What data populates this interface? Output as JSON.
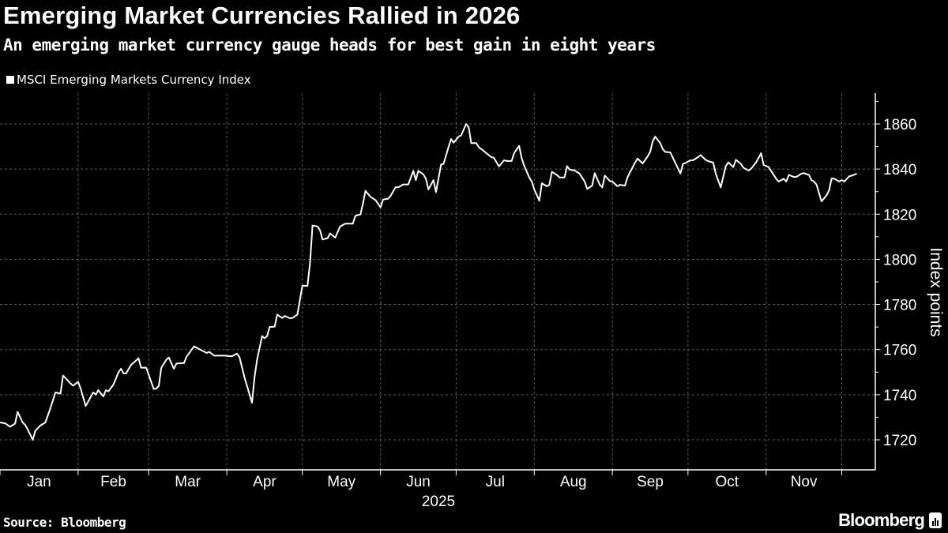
{
  "title": "Emerging Market Currencies Rallied in 2026",
  "subtitle": "An emerging market currency gauge heads for best gain in eight years",
  "source": "Source: Bloomberg",
  "logo_text": "Bloomberg",
  "colors": {
    "background": "#000000",
    "line": "#ffffff",
    "grid": "#5a5a5a"
  },
  "chart_data": {
    "type": "line",
    "title": "Emerging Market Currencies Rallied in 2026",
    "ylabel": "Index points",
    "xlabel": "2025",
    "ylim": [
      1710,
      1868
    ],
    "y_ticks": [
      1720,
      1740,
      1760,
      1780,
      1800,
      1820,
      1840,
      1860
    ],
    "x_ticks": [
      "Jan",
      "Feb",
      "Mar",
      "Apr",
      "May",
      "Jun",
      "Jul",
      "Aug",
      "Sep",
      "Oct",
      "Nov"
    ],
    "year": "2025",
    "grid": true,
    "y_axis_side": "right",
    "legend": "top-left",
    "series": [
      {
        "name": "MSCI Emerging Markets Currency Index",
        "points": [
          [
            "2025-01-01",
            1727.7
          ],
          [
            "2025-01-03",
            1727.3
          ],
          [
            "2025-01-05",
            1725.8
          ],
          [
            "2025-01-07",
            1727.2
          ],
          [
            "2025-01-08",
            1732.4
          ],
          [
            "2025-01-10",
            1727.7
          ],
          [
            "2025-01-11",
            1726.6
          ],
          [
            "2025-01-12",
            1724.5
          ],
          [
            "2025-01-14",
            1720.0
          ],
          [
            "2025-01-15",
            1724.0
          ],
          [
            "2025-01-17",
            1726.3
          ],
          [
            "2025-01-19",
            1727.7
          ],
          [
            "2025-01-21",
            1734.0
          ],
          [
            "2025-01-23",
            1741.0
          ],
          [
            "2025-01-25",
            1740.5
          ],
          [
            "2025-01-26",
            1748.5
          ],
          [
            "2025-01-29",
            1745.0
          ],
          [
            "2025-01-30",
            1744.0
          ],
          [
            "2025-02-01",
            1745.7
          ],
          [
            "2025-02-02",
            1742.7
          ],
          [
            "2025-02-04",
            1735.0
          ],
          [
            "2025-02-07",
            1741.0
          ],
          [
            "2025-02-08",
            1740.0
          ],
          [
            "2025-02-09",
            1742.0
          ],
          [
            "2025-02-11",
            1739.2
          ],
          [
            "2025-02-12",
            1742.0
          ],
          [
            "2025-02-13",
            1741.5
          ],
          [
            "2025-02-15",
            1744.5
          ],
          [
            "2025-02-17",
            1749.8
          ],
          [
            "2025-02-18",
            1751.5
          ],
          [
            "2025-02-19",
            1749.5
          ],
          [
            "2025-02-20",
            1749.4
          ],
          [
            "2025-02-22",
            1753.2
          ],
          [
            "2025-02-25",
            1756.1
          ],
          [
            "2025-02-26",
            1752.0
          ],
          [
            "2025-02-28",
            1752.0
          ],
          [
            "2025-03-03",
            1742.5
          ],
          [
            "2025-03-04",
            1742.7
          ],
          [
            "2025-03-05",
            1743.9
          ],
          [
            "2025-03-06",
            1752.0
          ],
          [
            "2025-03-08",
            1755.5
          ],
          [
            "2025-03-09",
            1756.5
          ],
          [
            "2025-03-11",
            1751.5
          ],
          [
            "2025-03-12",
            1753.8
          ],
          [
            "2025-03-15",
            1754.0
          ],
          [
            "2025-03-16",
            1756.8
          ],
          [
            "2025-03-19",
            1761.4
          ],
          [
            "2025-03-24",
            1758.5
          ],
          [
            "2025-03-25",
            1759.0
          ],
          [
            "2025-03-27",
            1757.3
          ],
          [
            "2025-03-31",
            1757.3
          ],
          [
            "2025-04-03",
            1757.0
          ],
          [
            "2025-04-05",
            1758.2
          ],
          [
            "2025-04-06",
            1756.7
          ],
          [
            "2025-04-08",
            1747.8
          ],
          [
            "2025-04-11",
            1736.4
          ],
          [
            "2025-04-12",
            1747.8
          ],
          [
            "2025-04-13",
            1755.5
          ],
          [
            "2025-04-15",
            1766.0
          ],
          [
            "2025-04-16",
            1765.0
          ],
          [
            "2025-04-17",
            1766.0
          ],
          [
            "2025-04-18",
            1770.0
          ],
          [
            "2025-04-20",
            1770.2
          ],
          [
            "2025-04-21",
            1775.5
          ],
          [
            "2025-04-23",
            1774.0
          ],
          [
            "2025-04-24",
            1774.9
          ],
          [
            "2025-04-26",
            1773.9
          ],
          [
            "2025-04-27",
            1774.0
          ],
          [
            "2025-04-29",
            1775.5
          ],
          [
            "2025-05-01",
            1788.3
          ],
          [
            "2025-05-03",
            1788.2
          ],
          [
            "2025-05-04",
            1798.2
          ],
          [
            "2025-05-05",
            1815.0
          ],
          [
            "2025-05-07",
            1814.6
          ],
          [
            "2025-05-08",
            1812.9
          ],
          [
            "2025-05-09",
            1808.8
          ],
          [
            "2025-05-11",
            1809.4
          ],
          [
            "2025-05-12",
            1811.5
          ],
          [
            "2025-05-14",
            1809.6
          ],
          [
            "2025-05-16",
            1814.6
          ],
          [
            "2025-05-18",
            1815.8
          ],
          [
            "2025-05-21",
            1815.8
          ],
          [
            "2025-05-22",
            1819.3
          ],
          [
            "2025-05-24",
            1819.9
          ],
          [
            "2025-05-25",
            1824.6
          ],
          [
            "2025-05-26",
            1830.4
          ],
          [
            "2025-05-28",
            1827.7
          ],
          [
            "2025-05-30",
            1826.3
          ],
          [
            "2025-06-01",
            1823.0
          ],
          [
            "2025-06-02",
            1826.5
          ],
          [
            "2025-06-04",
            1826.9
          ],
          [
            "2025-06-05",
            1828.1
          ],
          [
            "2025-06-07",
            1832.0
          ],
          [
            "2025-06-08",
            1831.9
          ],
          [
            "2025-06-10",
            1833.2
          ],
          [
            "2025-06-12",
            1833.2
          ],
          [
            "2025-06-14",
            1839.2
          ],
          [
            "2025-06-15",
            1835.1
          ],
          [
            "2025-06-16",
            1839.2
          ],
          [
            "2025-06-18",
            1837.7
          ],
          [
            "2025-06-19",
            1835.7
          ],
          [
            "2025-06-20",
            1831.0
          ],
          [
            "2025-06-22",
            1835.1
          ],
          [
            "2025-06-23",
            1829.8
          ],
          [
            "2025-06-25",
            1842.0
          ],
          [
            "2025-06-26",
            1842.3
          ],
          [
            "2025-06-28",
            1849.8
          ],
          [
            "2025-06-29",
            1853.3
          ],
          [
            "2025-06-30",
            1851.7
          ],
          [
            "2025-07-02",
            1854.4
          ],
          [
            "2025-07-03",
            1855.0
          ],
          [
            "2025-07-05",
            1860.0
          ],
          [
            "2025-07-06",
            1858.5
          ],
          [
            "2025-07-07",
            1851.5
          ],
          [
            "2025-07-09",
            1851.5
          ],
          [
            "2025-07-10",
            1849.7
          ],
          [
            "2025-07-12",
            1848.0
          ],
          [
            "2025-07-13",
            1847.0
          ],
          [
            "2025-07-15",
            1845.3
          ],
          [
            "2025-07-16",
            1845.0
          ],
          [
            "2025-07-18",
            1841.2
          ],
          [
            "2025-07-20",
            1843.9
          ],
          [
            "2025-07-21",
            1843.6
          ],
          [
            "2025-07-23",
            1843.6
          ],
          [
            "2025-07-24",
            1847.1
          ],
          [
            "2025-07-26",
            1850.3
          ],
          [
            "2025-07-27",
            1845.0
          ],
          [
            "2025-07-28",
            1841.5
          ],
          [
            "2025-07-30",
            1836.3
          ],
          [
            "2025-07-31",
            1834.5
          ],
          [
            "2025-08-01",
            1831.0
          ],
          [
            "2025-08-03",
            1826.0
          ],
          [
            "2025-08-04",
            1833.7
          ],
          [
            "2025-08-06",
            1832.4
          ],
          [
            "2025-08-07",
            1833.0
          ],
          [
            "2025-08-08",
            1838.8
          ],
          [
            "2025-08-10",
            1837.4
          ],
          [
            "2025-08-11",
            1836.3
          ],
          [
            "2025-08-13",
            1836.3
          ],
          [
            "2025-08-14",
            1841.3
          ],
          [
            "2025-08-15",
            1839.8
          ],
          [
            "2025-08-17",
            1839.4
          ],
          [
            "2025-08-19",
            1838.0
          ],
          [
            "2025-08-21",
            1834.5
          ],
          [
            "2025-08-22",
            1831.2
          ],
          [
            "2025-08-24",
            1832.7
          ],
          [
            "2025-08-25",
            1838.2
          ],
          [
            "2025-08-27",
            1833.1
          ],
          [
            "2025-08-28",
            1831.9
          ],
          [
            "2025-08-29",
            1837.1
          ],
          [
            "2025-08-31",
            1834.7
          ],
          [
            "2025-09-01",
            1834.5
          ],
          [
            "2025-09-03",
            1832.4
          ],
          [
            "2025-09-04",
            1833.0
          ],
          [
            "2025-09-06",
            1832.7
          ],
          [
            "2025-09-07",
            1836.3
          ],
          [
            "2025-09-08",
            1838.6
          ],
          [
            "2025-09-10",
            1842.9
          ],
          [
            "2025-09-11",
            1844.7
          ],
          [
            "2025-09-13",
            1842.5
          ],
          [
            "2025-09-15",
            1845.6
          ],
          [
            "2025-09-16",
            1847.6
          ],
          [
            "2025-09-17",
            1852.3
          ],
          [
            "2025-09-18",
            1854.4
          ],
          [
            "2025-09-20",
            1851.5
          ],
          [
            "2025-09-21",
            1848.8
          ],
          [
            "2025-09-22",
            1847.6
          ],
          [
            "2025-09-24",
            1847.4
          ],
          [
            "2025-09-26",
            1842.7
          ],
          [
            "2025-09-28",
            1838.0
          ],
          [
            "2025-09-29",
            1842.3
          ],
          [
            "2025-09-30",
            1842.7
          ],
          [
            "2025-10-02",
            1843.9
          ],
          [
            "2025-10-03",
            1843.9
          ],
          [
            "2025-10-05",
            1845.3
          ],
          [
            "2025-10-06",
            1846.2
          ],
          [
            "2025-10-08",
            1844.1
          ],
          [
            "2025-10-09",
            1843.5
          ],
          [
            "2025-10-11",
            1842.9
          ],
          [
            "2025-10-12",
            1838.0
          ],
          [
            "2025-10-14",
            1831.9
          ],
          [
            "2025-10-16",
            1841.3
          ],
          [
            "2025-10-17",
            1843.0
          ],
          [
            "2025-10-19",
            1840.9
          ],
          [
            "2025-10-20",
            1844.1
          ],
          [
            "2025-10-22",
            1842.3
          ],
          [
            "2025-10-23",
            1840.6
          ],
          [
            "2025-10-25",
            1839.4
          ],
          [
            "2025-10-26",
            1840.1
          ],
          [
            "2025-10-28",
            1842.9
          ],
          [
            "2025-10-30",
            1847.0
          ],
          [
            "2025-10-31",
            1841.8
          ],
          [
            "2025-11-02",
            1840.9
          ],
          [
            "2025-11-03",
            1839.2
          ],
          [
            "2025-11-05",
            1835.7
          ],
          [
            "2025-11-06",
            1834.5
          ],
          [
            "2025-11-08",
            1835.7
          ],
          [
            "2025-11-09",
            1834.5
          ],
          [
            "2025-11-10",
            1837.4
          ],
          [
            "2025-11-12",
            1836.5
          ],
          [
            "2025-11-13",
            1836.5
          ],
          [
            "2025-11-15",
            1838.0
          ],
          [
            "2025-11-16",
            1838.2
          ],
          [
            "2025-11-18",
            1837.4
          ],
          [
            "2025-11-19",
            1835.1
          ],
          [
            "2025-11-20",
            1834.5
          ],
          [
            "2025-11-21",
            1833.1
          ],
          [
            "2025-11-23",
            1825.7
          ],
          [
            "2025-11-25",
            1828.4
          ],
          [
            "2025-11-26",
            1830.6
          ],
          [
            "2025-11-27",
            1835.9
          ],
          [
            "2025-11-28",
            1835.7
          ],
          [
            "2025-11-30",
            1834.5
          ],
          [
            "2025-12-01",
            1835.1
          ],
          [
            "2025-12-02",
            1834.5
          ],
          [
            "2025-12-04",
            1836.8
          ],
          [
            "2025-12-05",
            1837.1
          ],
          [
            "2025-12-07",
            1838.0
          ]
        ]
      }
    ]
  }
}
